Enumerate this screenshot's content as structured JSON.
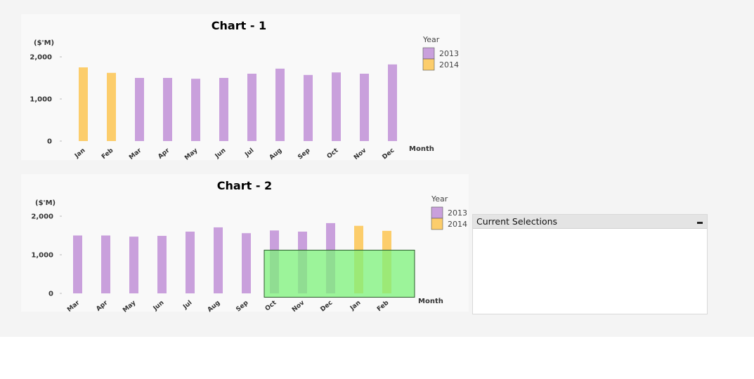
{
  "colors": {
    "y2013": "#c9a0dc",
    "y2014": "#fccd6b",
    "selection_fill": "#7cf27a",
    "selection_stroke": "#2a5a2a"
  },
  "chart_data": [
    {
      "type": "bar",
      "title": "Chart - 1",
      "ylabel": "($'M)",
      "xlabel": "Month",
      "ylim": [
        0,
        2000
      ],
      "yticks": [
        "0",
        "1,000",
        "2,000"
      ],
      "ytick_values": [
        0,
        1000,
        2000
      ],
      "legend_title": "Year",
      "legend": [
        {
          "name": "2013",
          "color": "#c9a0dc"
        },
        {
          "name": "2014",
          "color": "#fccd6b"
        }
      ],
      "grid": false,
      "legend_position": "top-right",
      "categories": [
        "Jan",
        "Feb",
        "Mar",
        "Apr",
        "May",
        "Jun",
        "Jul",
        "Aug",
        "Sep",
        "Oct",
        "Nov",
        "Dec"
      ],
      "values": [
        1750,
        1620,
        1500,
        1500,
        1480,
        1500,
        1600,
        1720,
        1570,
        1630,
        1600,
        1820
      ],
      "years": [
        "2014",
        "2014",
        "2013",
        "2013",
        "2013",
        "2013",
        "2013",
        "2013",
        "2013",
        "2013",
        "2013",
        "2013"
      ]
    },
    {
      "type": "bar",
      "title": "Chart - 2",
      "ylabel": "($'M)",
      "xlabel": "Month",
      "ylim": [
        0,
        2000
      ],
      "yticks": [
        "0",
        "1,000",
        "2,000"
      ],
      "ytick_values": [
        0,
        1000,
        2000
      ],
      "legend_title": "Year",
      "legend": [
        {
          "name": "2013",
          "color": "#c9a0dc"
        },
        {
          "name": "2014",
          "color": "#fccd6b"
        }
      ],
      "grid": false,
      "legend_position": "top-right",
      "categories": [
        "Mar",
        "Apr",
        "May",
        "Jun",
        "Jul",
        "Aug",
        "Sep",
        "Oct",
        "Nov",
        "Dec",
        "Jan",
        "Feb"
      ],
      "values": [
        1500,
        1500,
        1470,
        1490,
        1600,
        1710,
        1560,
        1630,
        1600,
        1820,
        1750,
        1620
      ],
      "years": [
        "2013",
        "2013",
        "2013",
        "2013",
        "2013",
        "2013",
        "2013",
        "2013",
        "2013",
        "2013",
        "2014",
        "2014"
      ],
      "selection": {
        "from_category": "Oct",
        "to_category": "Feb",
        "value_min": -100,
        "value_max": 1120
      }
    }
  ],
  "current_selections": {
    "title": "Current Selections"
  }
}
